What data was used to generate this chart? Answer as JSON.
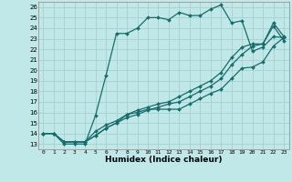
{
  "xlabel": "Humidex (Indice chaleur)",
  "bg_color": "#c0e8e8",
  "grid_color": "#a8d0d0",
  "line_color": "#1a6b6b",
  "xlim": [
    -0.5,
    23.5
  ],
  "ylim": [
    12.5,
    26.5
  ],
  "yticks": [
    13,
    14,
    15,
    16,
    17,
    18,
    19,
    20,
    21,
    22,
    23,
    24,
    25,
    26
  ],
  "xticks": [
    0,
    1,
    2,
    3,
    4,
    5,
    6,
    7,
    8,
    9,
    10,
    11,
    12,
    13,
    14,
    15,
    16,
    17,
    18,
    19,
    20,
    21,
    22,
    23
  ],
  "series": [
    {
      "x": [
        0,
        1,
        2,
        3,
        4,
        5,
        6,
        7,
        8,
        9,
        10,
        11,
        12,
        13,
        14,
        15,
        16,
        17,
        18,
        19,
        20,
        21,
        22,
        23
      ],
      "y": [
        14,
        14,
        13,
        13,
        13,
        15.7,
        19.5,
        23.5,
        23.5,
        24,
        25,
        25,
        24.8,
        25.5,
        25.2,
        25.2,
        25.8,
        26.2,
        24.5,
        24.7,
        21.8,
        22.2,
        23.2,
        23.1
      ]
    },
    {
      "x": [
        0,
        1,
        2,
        3,
        4,
        5,
        6,
        7,
        8,
        9,
        10,
        11,
        12,
        13,
        14,
        15,
        16,
        17,
        18,
        19,
        20,
        21,
        22,
        23
      ],
      "y": [
        14,
        14,
        13.2,
        13.2,
        13.2,
        14.2,
        14.8,
        15.2,
        15.8,
        16,
        16.3,
        16.3,
        16.3,
        16.3,
        16.8,
        17.3,
        17.8,
        18.2,
        19.2,
        20.2,
        20.3,
        20.8,
        22.3,
        23.1
      ]
    },
    {
      "x": [
        0,
        1,
        2,
        3,
        4,
        5,
        6,
        7,
        8,
        9,
        10,
        11,
        12,
        13,
        14,
        15,
        16,
        17,
        18,
        19,
        20,
        21,
        22,
        23
      ],
      "y": [
        14,
        14,
        13.2,
        13.2,
        13.2,
        13.8,
        14.5,
        15.0,
        15.5,
        15.8,
        16.2,
        16.5,
        16.8,
        17.0,
        17.5,
        18.0,
        18.5,
        19.2,
        20.5,
        21.5,
        22.3,
        22.5,
        24.5,
        23.2
      ]
    },
    {
      "x": [
        0,
        1,
        2,
        3,
        4,
        5,
        6,
        7,
        8,
        9,
        10,
        11,
        12,
        13,
        14,
        15,
        16,
        17,
        18,
        19,
        20,
        21,
        22,
        23
      ],
      "y": [
        14,
        14,
        13.2,
        13.2,
        13.2,
        13.8,
        14.5,
        15.0,
        15.8,
        16.2,
        16.5,
        16.8,
        17.0,
        17.5,
        18.0,
        18.5,
        19.0,
        19.8,
        21.2,
        22.2,
        22.5,
        22.5,
        24.2,
        22.8
      ]
    }
  ]
}
